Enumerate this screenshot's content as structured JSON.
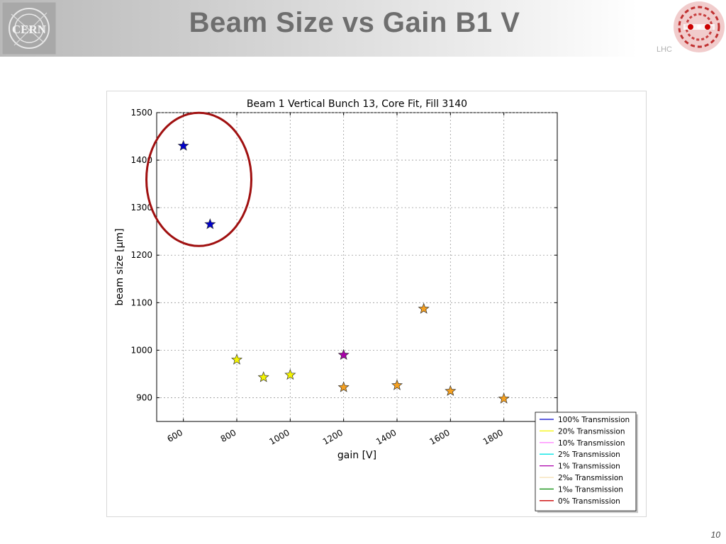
{
  "slide": {
    "title": "Beam Size vs Gain B1 V",
    "page_number": "10",
    "logos": {
      "left": "cern-logo",
      "left_text": "CERN",
      "right": "lhc-logo",
      "right_text": "LHC"
    }
  },
  "colors": {
    "highlight_circle": "#a01010",
    "grid": "#9a9a9a"
  },
  "chart_data": {
    "type": "scatter",
    "title": "Beam 1 Vertical Bunch 13, Core Fit, Fill 3140",
    "xlabel": "gain [V]",
    "ylabel": "beam size [μm]",
    "xlim": [
      500,
      2000
    ],
    "ylim": [
      850,
      1500
    ],
    "xticks": [
      600,
      800,
      1000,
      1200,
      1400,
      1600,
      1800
    ],
    "xtick_labels": [
      "600",
      "800",
      "1000",
      "1200",
      "1400",
      "1600",
      "1800"
    ],
    "yticks": [
      900,
      1000,
      1100,
      1200,
      1300,
      1400,
      1500
    ],
    "ytick_labels": [
      "900",
      "1000",
      "1100",
      "1200",
      "1300",
      "1400",
      "1500"
    ],
    "grid": true,
    "marker": "star",
    "series": [
      {
        "name": "100% Transmission",
        "color": "#0000cc",
        "x": [
          600,
          700
        ],
        "y": [
          1430,
          1265
        ]
      },
      {
        "name": "20% Transmission",
        "color": "#f5f500",
        "x": [
          800,
          900,
          1000
        ],
        "y": [
          980,
          943,
          948
        ]
      },
      {
        "name": "10% Transmission",
        "color": "#ff88ff",
        "x": [],
        "y": []
      },
      {
        "name": "2% Transmission",
        "color": "#00e5e5",
        "x": [],
        "y": []
      },
      {
        "name": "1% Transmission",
        "color": "#aa00aa",
        "x": [
          1200
        ],
        "y": [
          990
        ]
      },
      {
        "name": "2‰ Transmission",
        "color": "#f5dfb0",
        "x": [],
        "y": []
      },
      {
        "name": "1‰ Transmission",
        "color": "#008800",
        "x": [],
        "y": []
      },
      {
        "name": "0% Transmission",
        "color": "#cc0000",
        "x": [],
        "y": []
      },
      {
        "name": "unlabeled (orange markers)",
        "color": "#f5a020",
        "in_legend": false,
        "x": [
          1200,
          1400,
          1500,
          1600,
          1800
        ],
        "y": [
          922,
          926,
          1087,
          914,
          898
        ]
      }
    ],
    "legend_location": "lower-right, outside plot area",
    "annotation": "red ellipse around 100% Transmission points"
  }
}
